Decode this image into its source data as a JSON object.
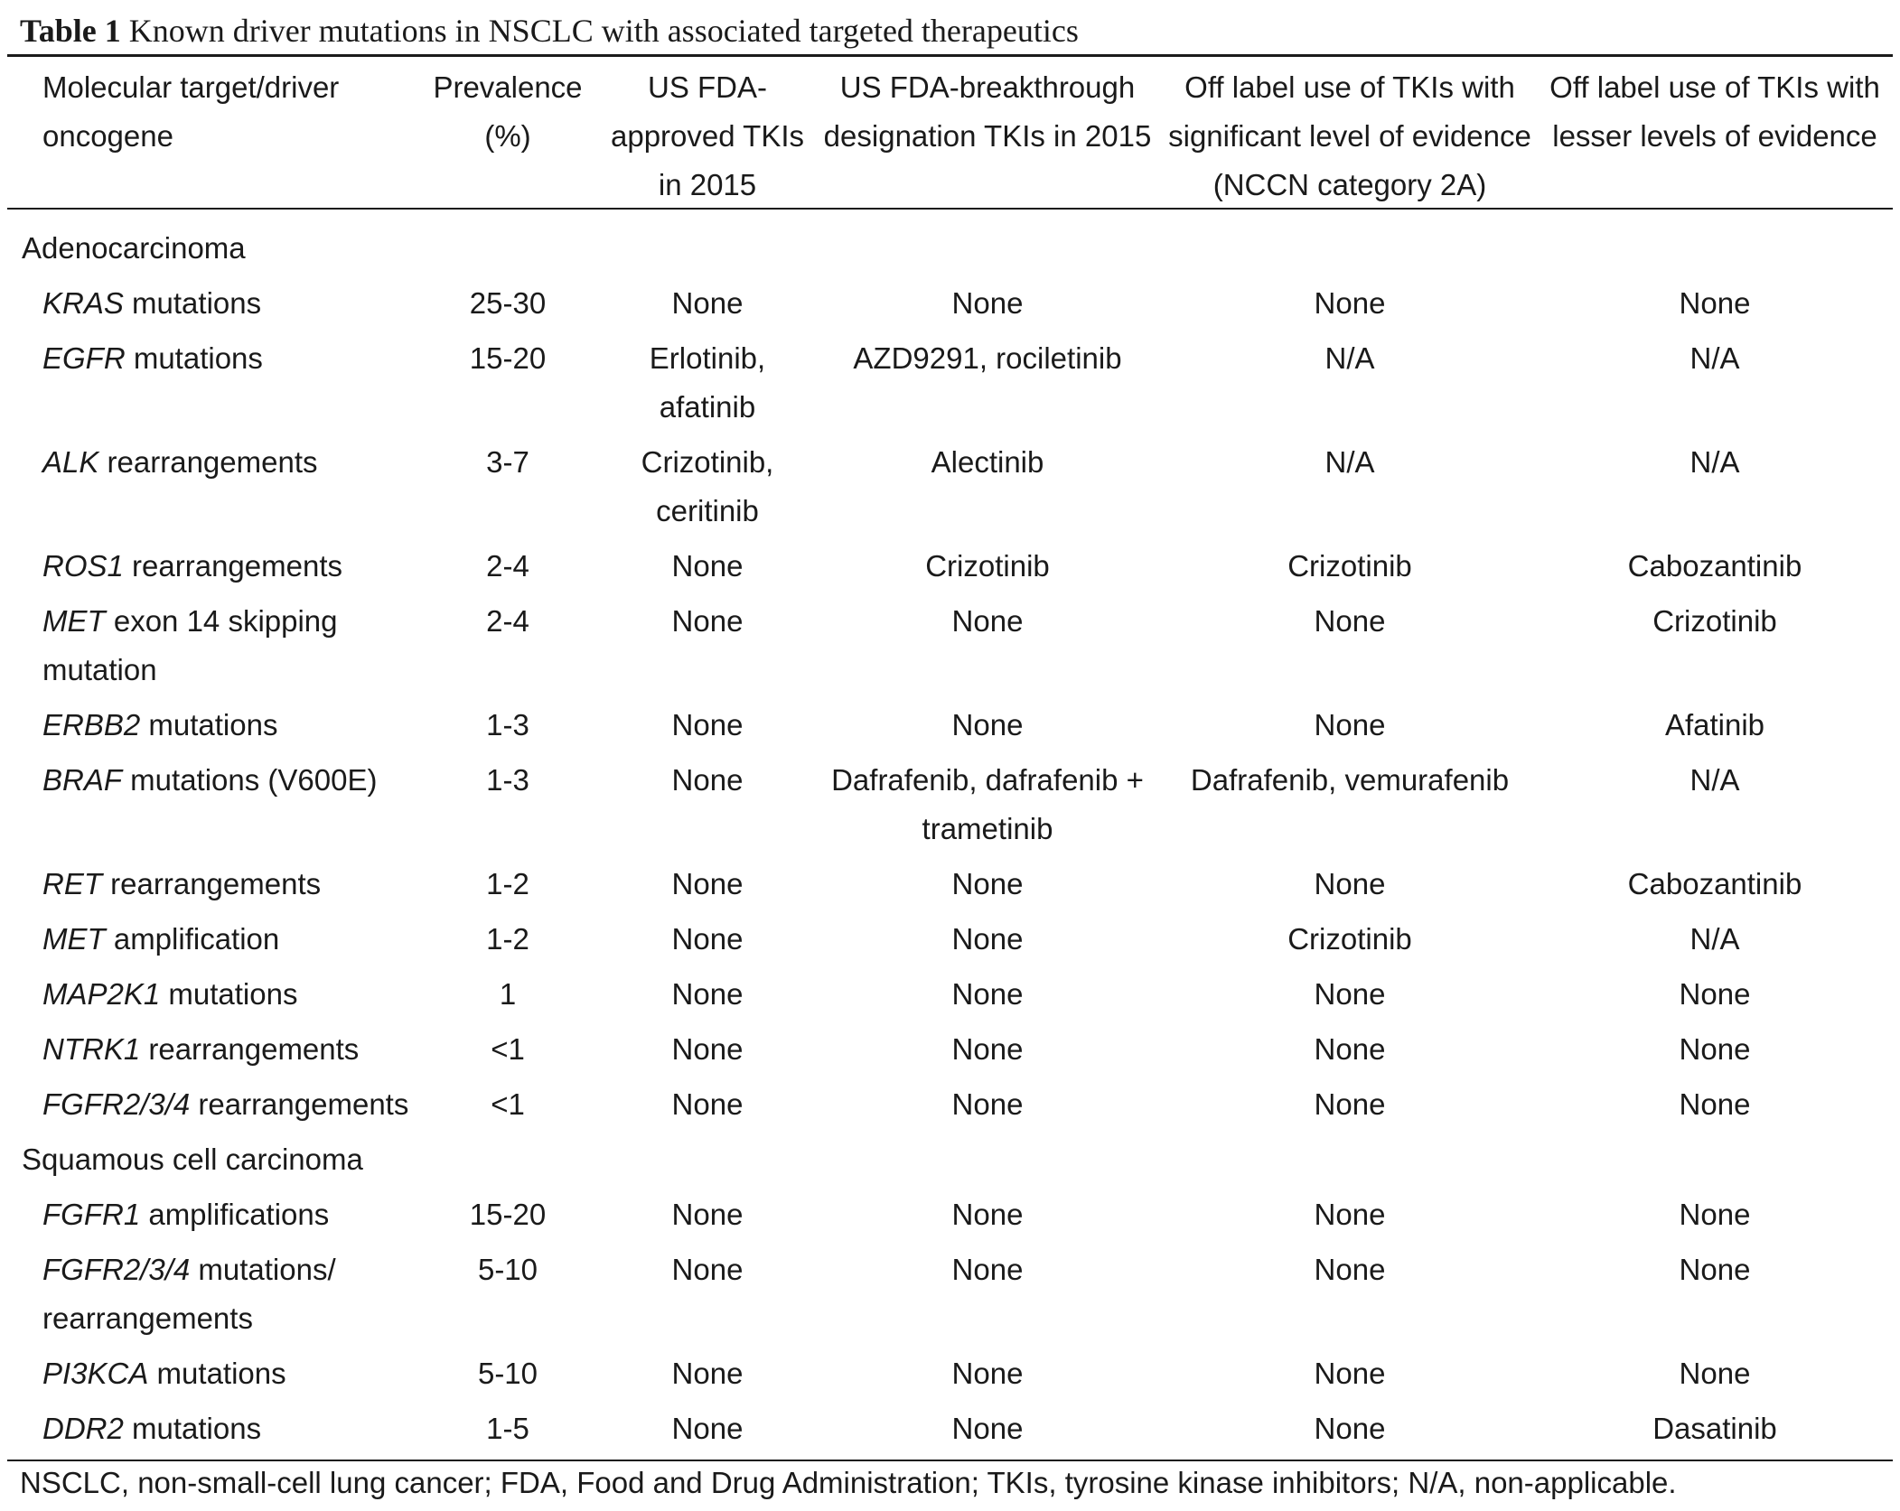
{
  "table": {
    "label": "Table 1",
    "caption": "Known driver mutations in NSCLC with associated targeted therapeutics",
    "headers": [
      "Molecular target/driver oncogene",
      "Prevalence (%)",
      "US FDA-approved TKIs in 2015",
      "US FDA-breakthrough designation TKIs in 2015",
      "Off label use of TKIs with significant level of evidence (NCCN category 2A)",
      "Off label use of TKIs with lesser levels of evidence"
    ],
    "sections": [
      {
        "title": "Adenocarcinoma",
        "rows": [
          {
            "gene": "KRAS",
            "desc": " mutations",
            "cells": [
              "25-30",
              "None",
              "None",
              "None",
              "None"
            ]
          },
          {
            "gene": "EGFR",
            "desc": " mutations",
            "cells": [
              "15-20",
              "Erlotinib, afatinib",
              "AZD9291, rociletinib",
              "N/A",
              "N/A"
            ]
          },
          {
            "gene": "ALK",
            "desc": " rearrangements",
            "cells": [
              "3-7",
              "Crizotinib, ceritinib",
              "Alectinib",
              "N/A",
              "N/A"
            ]
          },
          {
            "gene": "ROS1",
            "desc": " rearrangements",
            "cells": [
              "2-4",
              "None",
              "Crizotinib",
              "Crizotinib",
              "Cabozantinib"
            ]
          },
          {
            "gene": "MET",
            "desc": " exon 14 skipping mutation",
            "cells": [
              "2-4",
              "None",
              "None",
              "None",
              "Crizotinib"
            ]
          },
          {
            "gene": "ERBB2",
            "desc": " mutations",
            "cells": [
              "1-3",
              "None",
              "None",
              "None",
              "Afatinib"
            ]
          },
          {
            "gene": "BRAF",
            "desc": " mutations (V600E)",
            "cells": [
              "1-3",
              "None",
              "Dafrafenib, dafrafenib + trametinib",
              "Dafrafenib, vemurafenib",
              "N/A"
            ]
          },
          {
            "gene": "RET",
            "desc": " rearrangements",
            "cells": [
              "1-2",
              "None",
              "None",
              "None",
              "Cabozantinib"
            ]
          },
          {
            "gene": "MET",
            "desc": " amplification",
            "cells": [
              "1-2",
              "None",
              "None",
              "Crizotinib",
              "N/A"
            ]
          },
          {
            "gene": "MAP2K1",
            "desc": " mutations",
            "cells": [
              "1",
              "None",
              "None",
              "None",
              "None"
            ]
          },
          {
            "gene": "NTRK1",
            "desc": " rearrangements",
            "cells": [
              "<1",
              "None",
              "None",
              "None",
              "None"
            ]
          },
          {
            "gene": "FGFR2/3/4",
            "desc": " rearrangements",
            "cells": [
              "<1",
              "None",
              "None",
              "None",
              "None"
            ]
          }
        ]
      },
      {
        "title": "Squamous cell carcinoma",
        "rows": [
          {
            "gene": "FGFR1",
            "desc": " amplifications",
            "cells": [
              "15-20",
              "None",
              "None",
              "None",
              "None"
            ]
          },
          {
            "gene": "FGFR2/3/4",
            "desc": " mutations/ rearrangements",
            "cells": [
              "5-10",
              "None",
              "None",
              "None",
              "None"
            ]
          },
          {
            "gene": "PI3KCA",
            "desc": " mutations",
            "cells": [
              "5-10",
              "None",
              "None",
              "None",
              "None"
            ]
          },
          {
            "gene": "DDR2",
            "desc": " mutations",
            "cells": [
              "1-5",
              "None",
              "None",
              "None",
              "Dasatinib"
            ]
          }
        ]
      }
    ],
    "footnote": "NSCLC, non-small-cell lung cancer; FDA, Food and Drug Administration; TKIs, tyrosine kinase inhibitors; N/A, non-applicable."
  }
}
